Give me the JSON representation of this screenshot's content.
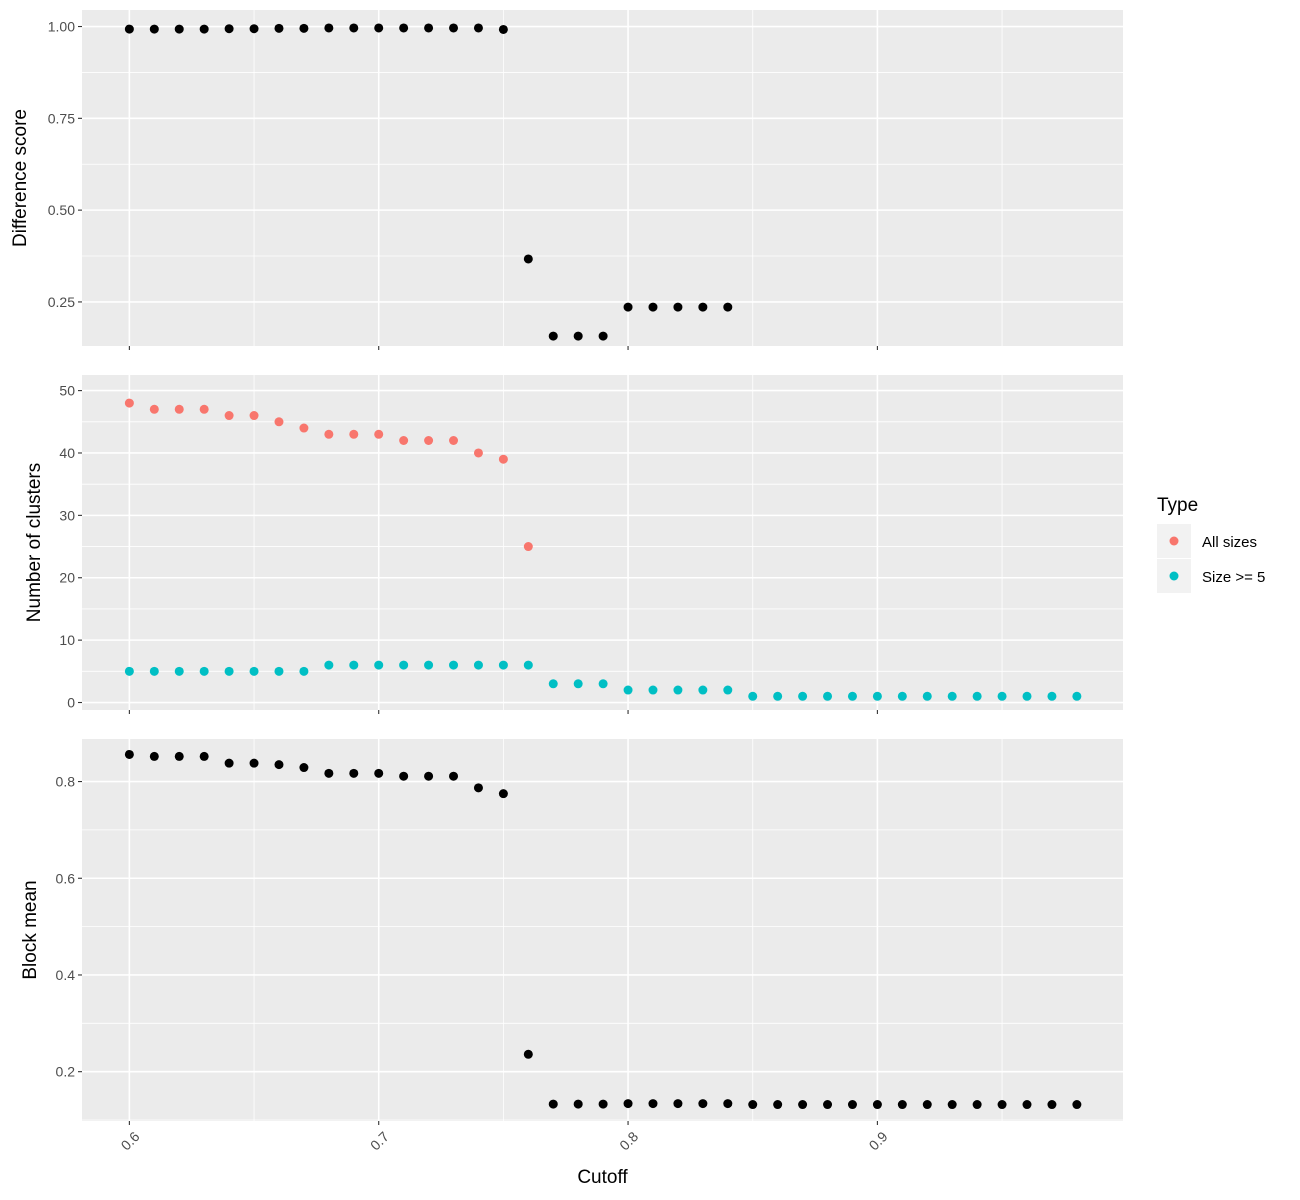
{
  "chart_data": [
    {
      "type": "scatter",
      "ylabel": "Difference score",
      "xlim": [
        0.581,
        0.9985
      ],
      "ylim": [
        0.13,
        1.045
      ],
      "y_ticks": [
        "0.25",
        "0.50",
        "0.75",
        "1.00"
      ],
      "y_tick_values": [
        0.25,
        0.5,
        0.75,
        1.0
      ],
      "point_color": "#000000",
      "series": [
        {
          "points": [
            [
              0.6,
              0.993
            ],
            [
              0.61,
              0.993
            ],
            [
              0.62,
              0.993
            ],
            [
              0.63,
              0.993
            ],
            [
              0.64,
              0.994
            ],
            [
              0.65,
              0.994
            ],
            [
              0.66,
              0.995
            ],
            [
              0.67,
              0.995
            ],
            [
              0.68,
              0.996
            ],
            [
              0.69,
              0.996
            ],
            [
              0.7,
              0.996
            ],
            [
              0.71,
              0.996
            ],
            [
              0.72,
              0.996
            ],
            [
              0.73,
              0.996
            ],
            [
              0.74,
              0.996
            ],
            [
              0.75,
              0.992
            ],
            [
              0.76,
              0.367
            ],
            [
              0.77,
              0.157
            ],
            [
              0.78,
              0.157
            ],
            [
              0.79,
              0.157
            ],
            [
              0.8,
              0.236
            ],
            [
              0.81,
              0.236
            ],
            [
              0.82,
              0.236
            ],
            [
              0.83,
              0.236
            ],
            [
              0.84,
              0.236
            ]
          ]
        }
      ]
    },
    {
      "type": "scatter",
      "ylabel": "Number of clusters",
      "xlim": [
        0.581,
        0.9985
      ],
      "ylim": [
        -1.2,
        52.5
      ],
      "y_ticks": [
        "0",
        "10",
        "20",
        "30",
        "40",
        "50"
      ],
      "y_tick_values": [
        0,
        10,
        20,
        30,
        40,
        50
      ],
      "series": [
        {
          "name": "All sizes",
          "color": "#F8766D",
          "points": [
            [
              0.6,
              48
            ],
            [
              0.61,
              47
            ],
            [
              0.62,
              47
            ],
            [
              0.63,
              47
            ],
            [
              0.64,
              46
            ],
            [
              0.65,
              46
            ],
            [
              0.66,
              45
            ],
            [
              0.67,
              44
            ],
            [
              0.68,
              43
            ],
            [
              0.69,
              43
            ],
            [
              0.7,
              43
            ],
            [
              0.71,
              42
            ],
            [
              0.72,
              42
            ],
            [
              0.73,
              42
            ],
            [
              0.74,
              40
            ],
            [
              0.75,
              39
            ],
            [
              0.76,
              25
            ]
          ]
        },
        {
          "name": "Size >= 5",
          "color": "#00BFC4",
          "points": [
            [
              0.6,
              5
            ],
            [
              0.61,
              5
            ],
            [
              0.62,
              5
            ],
            [
              0.63,
              5
            ],
            [
              0.64,
              5
            ],
            [
              0.65,
              5
            ],
            [
              0.66,
              5
            ],
            [
              0.67,
              5
            ],
            [
              0.68,
              6
            ],
            [
              0.69,
              6
            ],
            [
              0.7,
              6
            ],
            [
              0.71,
              6
            ],
            [
              0.72,
              6
            ],
            [
              0.73,
              6
            ],
            [
              0.74,
              6
            ],
            [
              0.75,
              6
            ],
            [
              0.76,
              6
            ],
            [
              0.77,
              3
            ],
            [
              0.78,
              3
            ],
            [
              0.79,
              3
            ],
            [
              0.8,
              2
            ],
            [
              0.81,
              2
            ],
            [
              0.82,
              2
            ],
            [
              0.83,
              2
            ],
            [
              0.84,
              2
            ],
            [
              0.85,
              1
            ],
            [
              0.86,
              1
            ],
            [
              0.87,
              1
            ],
            [
              0.88,
              1
            ],
            [
              0.89,
              1
            ],
            [
              0.9,
              1
            ],
            [
              0.91,
              1
            ],
            [
              0.92,
              1
            ],
            [
              0.93,
              1
            ],
            [
              0.94,
              1
            ],
            [
              0.95,
              1
            ],
            [
              0.96,
              1
            ],
            [
              0.97,
              1
            ],
            [
              0.98,
              1
            ]
          ]
        }
      ]
    },
    {
      "type": "scatter",
      "ylabel": "Block mean",
      "xlabel": "Cutoff",
      "xlim": [
        0.581,
        0.9985
      ],
      "ylim": [
        0.098,
        0.888
      ],
      "y_ticks": [
        "0.2",
        "0.4",
        "0.6",
        "0.8"
      ],
      "y_tick_values": [
        0.2,
        0.4,
        0.6,
        0.8
      ],
      "x_ticks": [
        "0.6",
        "0.7",
        "0.8",
        "0.9"
      ],
      "x_tick_values": [
        0.6,
        0.7,
        0.8,
        0.9
      ],
      "point_color": "#000000",
      "series": [
        {
          "points": [
            [
              0.6,
              0.856
            ],
            [
              0.61,
              0.852
            ],
            [
              0.62,
              0.852
            ],
            [
              0.63,
              0.852
            ],
            [
              0.64,
              0.838
            ],
            [
              0.65,
              0.838
            ],
            [
              0.66,
              0.835
            ],
            [
              0.67,
              0.829
            ],
            [
              0.68,
              0.817
            ],
            [
              0.69,
              0.817
            ],
            [
              0.7,
              0.817
            ],
            [
              0.71,
              0.811
            ],
            [
              0.72,
              0.811
            ],
            [
              0.73,
              0.811
            ],
            [
              0.74,
              0.787
            ],
            [
              0.75,
              0.775
            ],
            [
              0.76,
              0.236
            ],
            [
              0.77,
              0.133
            ],
            [
              0.78,
              0.133
            ],
            [
              0.79,
              0.133
            ],
            [
              0.8,
              0.134
            ],
            [
              0.81,
              0.134
            ],
            [
              0.82,
              0.134
            ],
            [
              0.83,
              0.134
            ],
            [
              0.84,
              0.134
            ],
            [
              0.85,
              0.132
            ],
            [
              0.86,
              0.132
            ],
            [
              0.87,
              0.132
            ],
            [
              0.88,
              0.132
            ],
            [
              0.89,
              0.132
            ],
            [
              0.9,
              0.132
            ],
            [
              0.91,
              0.132
            ],
            [
              0.92,
              0.132
            ],
            [
              0.93,
              0.132
            ],
            [
              0.94,
              0.132
            ],
            [
              0.95,
              0.132
            ],
            [
              0.96,
              0.132
            ],
            [
              0.97,
              0.132
            ],
            [
              0.98,
              0.132
            ]
          ]
        }
      ]
    }
  ],
  "legend": {
    "title": "Type",
    "items": [
      {
        "label": "All sizes",
        "color": "#F8766D"
      },
      {
        "label": "Size >= 5",
        "color": "#00BFC4"
      }
    ]
  }
}
